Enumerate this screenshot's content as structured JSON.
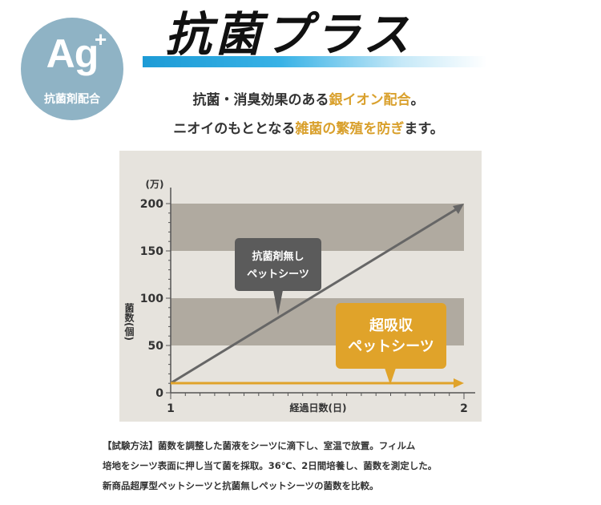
{
  "badge": {
    "symbol": "Ag",
    "plus": "+",
    "caption": "抗菌剤配合"
  },
  "title": "抗菌プラス",
  "lead": {
    "line1_a": "抗菌・消臭効果のある",
    "line1_hl": "銀イオン配合",
    "line1_b": "。",
    "line2_a": "ニオイのもととなる",
    "line2_hl": "雑菌の繁殖を防ぎ",
    "line2_b": "ます。"
  },
  "chart_data": {
    "type": "line",
    "x": [
      1,
      2
    ],
    "xlabel": "経過日数(日)",
    "ylabel": "菌数(個)",
    "yunit": "(万)",
    "ylim": [
      0,
      200
    ],
    "yticks": [
      0,
      50,
      100,
      150,
      200
    ],
    "xticks": [
      1,
      2
    ],
    "series": [
      {
        "name": "抗菌剤無しペットシーツ",
        "values": [
          0,
          200
        ]
      },
      {
        "name": "超吸収ペットシーツ",
        "values": [
          0,
          0
        ]
      }
    ],
    "callouts": {
      "gray": [
        "抗菌剤無し",
        "ペットシーツ"
      ],
      "gold": [
        "超吸収",
        "ペットシーツ"
      ]
    },
    "colors": {
      "gray_line": "#666666",
      "gold_line": "#e0a32a",
      "band": "#b0aaa0",
      "bg": "#e6e3dd"
    }
  },
  "notes": [
    "【試験方法】菌数を調整した菌液をシーツに滴下し、室温で放置。フィルム",
    "培地をシーツ表面に押し当て菌を採取。36℃、2日間培養し、菌数を測定した。",
    "新商品超厚型ペットシーツと抗菌無しペットシーツの菌数を比較。"
  ]
}
